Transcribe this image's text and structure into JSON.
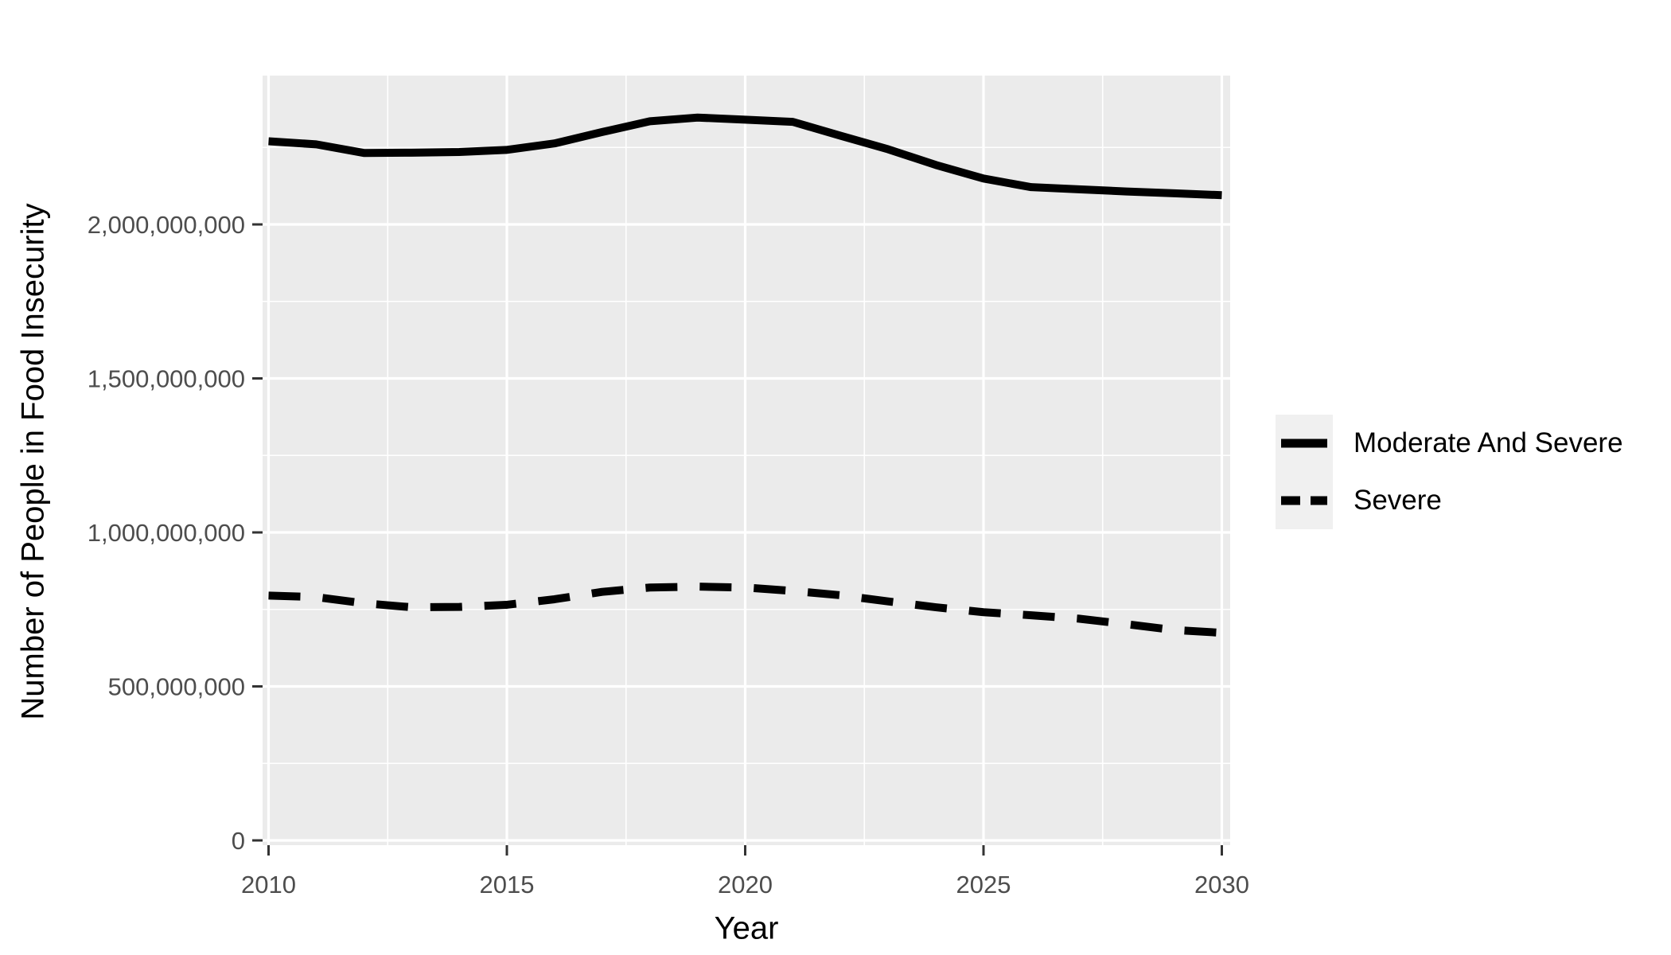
{
  "figure": {
    "background_color": "#FFFFFF",
    "panel_background_color": "#EBEBEB",
    "grid_color": "#FFFFFF",
    "tick_color": "#333333",
    "tick_label_color": "#4D4D4D",
    "line_color": "#000000",
    "legend_key_color": "#F0F0F0"
  },
  "axes": {
    "x": {
      "title": "Year",
      "tick_values": [
        2010,
        2015,
        2020,
        2025,
        2030
      ],
      "tick_labels": [
        "2010",
        "2015",
        "2020",
        "2025",
        "2030"
      ],
      "minor_tick_values": [
        2012.5,
        2017.5,
        2022.5,
        2027.5
      ]
    },
    "y": {
      "title": "Number of People in Food Insecurity",
      "tick_values": [
        0,
        500000000,
        1000000000,
        1500000000,
        2000000000
      ],
      "tick_labels": [
        "0",
        "500,000,000",
        "1,000,000,000",
        "1,500,000,000",
        "2,000,000,000"
      ],
      "minor_tick_values": [
        250000000,
        750000000,
        1250000000,
        1750000000,
        2250000000
      ]
    }
  },
  "legend": {
    "entries": [
      {
        "label": "Moderate And Severe",
        "linetype": "solid"
      },
      {
        "label": "Severe",
        "linetype": "dashed"
      }
    ]
  },
  "chart_data": {
    "type": "line",
    "title": "",
    "xlabel": "Year",
    "ylabel": "Number of People in Food Insecurity",
    "x": [
      2010,
      2011,
      2012,
      2013,
      2014,
      2015,
      2016,
      2017,
      2018,
      2019,
      2020,
      2021,
      2022,
      2023,
      2024,
      2025,
      2026,
      2027,
      2028,
      2029,
      2030
    ],
    "series": [
      {
        "name": "Moderate And Severe",
        "linetype": "solid",
        "color": "#000000",
        "values": [
          2270000000,
          2260000000,
          2232000000,
          2233000000,
          2235000000,
          2242000000,
          2263000000,
          2300000000,
          2335000000,
          2347000000,
          2340000000,
          2333000000,
          2288000000,
          2244000000,
          2193000000,
          2149000000,
          2121000000,
          2114000000,
          2107000000,
          2101000000,
          2095000000
        ]
      },
      {
        "name": "Severe",
        "linetype": "dashed",
        "color": "#000000",
        "values": [
          795000000,
          790000000,
          770000000,
          757000000,
          758000000,
          765000000,
          783000000,
          807000000,
          821000000,
          824000000,
          821000000,
          810000000,
          796000000,
          776000000,
          757000000,
          741000000,
          731000000,
          720000000,
          702000000,
          683000000,
          674000000
        ]
      }
    ],
    "xlim": [
      2009.87,
      2030.18
    ],
    "ylim": [
      0,
      2480000000
    ],
    "grid": true,
    "legend_position": "right"
  }
}
